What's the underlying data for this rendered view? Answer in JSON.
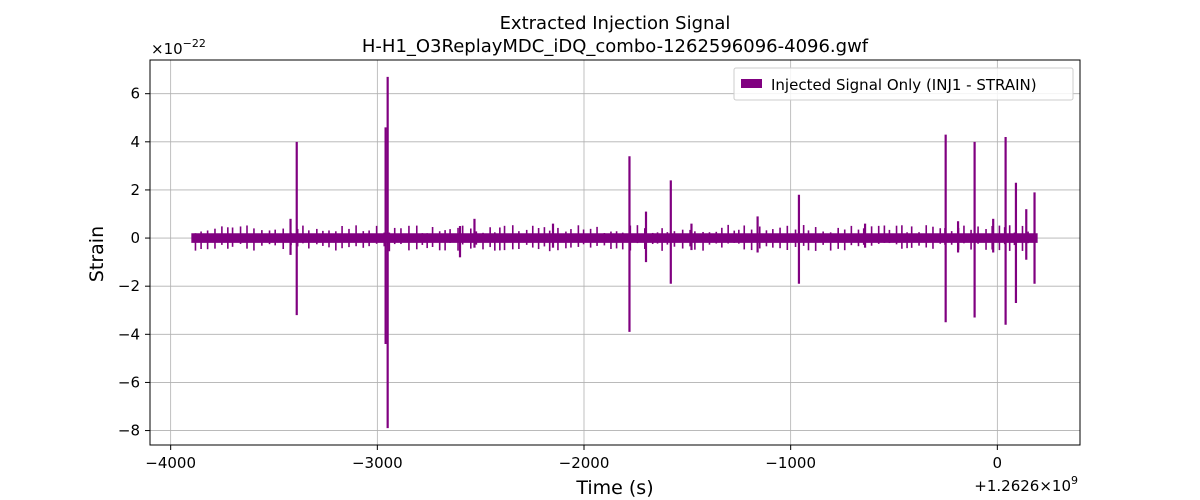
{
  "chart_data": {
    "type": "line",
    "title": "Extracted Injection Signal",
    "subtitle": "H-H1_O3ReplayMDC_iDQ_combo-1262596096-4096.gwf",
    "xlabel": "Time (s)",
    "ylabel": "Strain",
    "x_offset_label": "+1.2626×10",
    "x_offset_exponent": "9",
    "y_scale_label": "×10",
    "y_scale_exponent": "−22",
    "xlim": [
      -4100,
      400
    ],
    "ylim": [
      -8.6,
      7.4
    ],
    "grid": true,
    "legend_position": "top-right",
    "xticks": [
      {
        "value": -4000,
        "label": "−4000"
      },
      {
        "value": -3000,
        "label": "−3000"
      },
      {
        "value": -2000,
        "label": "−2000"
      },
      {
        "value": -1000,
        "label": "−1000"
      },
      {
        "value": 0,
        "label": "0"
      }
    ],
    "yticks": [
      {
        "value": 6,
        "label": "6"
      },
      {
        "value": 4,
        "label": "4"
      },
      {
        "value": 2,
        "label": "2"
      },
      {
        "value": 0,
        "label": "0"
      },
      {
        "value": -2,
        "label": "−2"
      },
      {
        "value": -4,
        "label": "−4"
      },
      {
        "value": -6,
        "label": "−6"
      },
      {
        "value": -8,
        "label": "−8"
      }
    ],
    "series": [
      {
        "name": "Injected Signal Only (INJ1 - STRAIN)",
        "color": "#800080",
        "x_range": [
          -3900,
          195
        ],
        "baseline_band": [
          -0.2,
          0.2
        ],
        "spikes": [
          {
            "x": -3390,
            "ymax": 4.0,
            "ymin": -3.2
          },
          {
            "x": -3420,
            "ymax": 0.8,
            "ymin": -0.7
          },
          {
            "x": -2950,
            "ymax": 6.7,
            "ymin": -7.9
          },
          {
            "x": -2960,
            "ymax": 4.6,
            "ymin": -4.4
          },
          {
            "x": -2600,
            "ymax": 0.5,
            "ymin": -0.8
          },
          {
            "x": -2530,
            "ymax": 0.8,
            "ymin": -0.4
          },
          {
            "x": -2150,
            "ymax": 0.6,
            "ymin": -0.4
          },
          {
            "x": -1780,
            "ymax": 3.4,
            "ymin": -3.9
          },
          {
            "x": -1700,
            "ymax": 1.1,
            "ymin": -1.0
          },
          {
            "x": -1580,
            "ymax": 2.4,
            "ymin": -1.9
          },
          {
            "x": -1480,
            "ymax": 0.6,
            "ymin": -0.5
          },
          {
            "x": -1160,
            "ymax": 0.9,
            "ymin": -0.6
          },
          {
            "x": -960,
            "ymax": 1.8,
            "ymin": -1.9
          },
          {
            "x": -640,
            "ymax": 0.6,
            "ymin": -0.4
          },
          {
            "x": -250,
            "ymax": 4.3,
            "ymin": -3.5
          },
          {
            "x": -190,
            "ymax": 0.7,
            "ymin": -0.6
          },
          {
            "x": -110,
            "ymax": 4.0,
            "ymin": -3.3
          },
          {
            "x": -20,
            "ymax": 0.8,
            "ymin": -0.6
          },
          {
            "x": 40,
            "ymax": 4.2,
            "ymin": -3.6
          },
          {
            "x": 90,
            "ymax": 2.3,
            "ymin": -2.7
          },
          {
            "x": 140,
            "ymax": 1.2,
            "ymin": -0.9
          },
          {
            "x": 180,
            "ymax": 1.9,
            "ymin": -1.9
          }
        ]
      }
    ]
  }
}
